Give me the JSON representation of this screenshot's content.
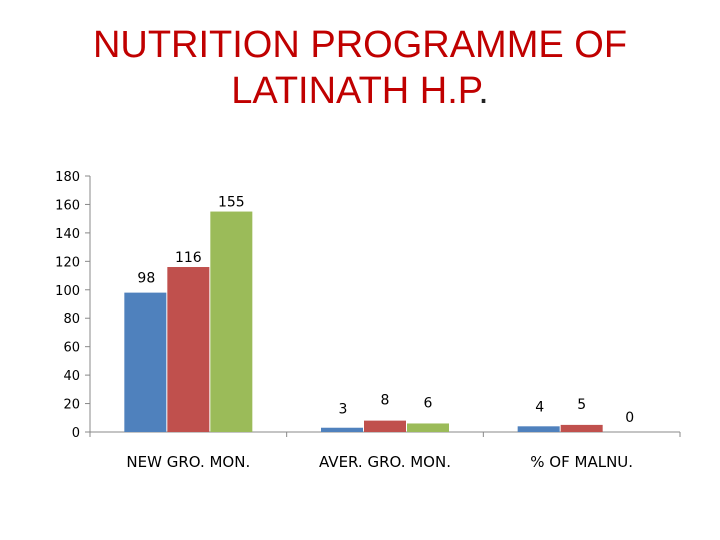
{
  "page": {
    "title_line1": "NUTRITION PROGRAMME OF",
    "title_line2": "LATINATH H.P",
    "title_dot": "."
  },
  "chart_data": {
    "type": "bar",
    "title": "NUTRITION PROGRAMME OF LATINATH H.P.",
    "xlabel": "",
    "ylabel": "",
    "ylim": [
      0,
      180
    ],
    "yticks": [
      0,
      20,
      40,
      60,
      80,
      100,
      120,
      140,
      160,
      180
    ],
    "grid": false,
    "legend": "none",
    "categories": [
      "NEW GRO. MON.",
      "AVER. GRO. MON.",
      "% OF MALNU."
    ],
    "series": [
      {
        "values": [
          98,
          3,
          4
        ],
        "color": "#4f81bd"
      },
      {
        "values": [
          116,
          8,
          5
        ],
        "color": "#c0504d"
      },
      {
        "values": [
          155,
          6,
          0
        ],
        "color": "#9bbb59"
      }
    ],
    "data_labels": [
      [
        "98",
        "3",
        "4"
      ],
      [
        "116",
        "8",
        "5"
      ],
      [
        "155",
        "6",
        "0"
      ]
    ]
  }
}
